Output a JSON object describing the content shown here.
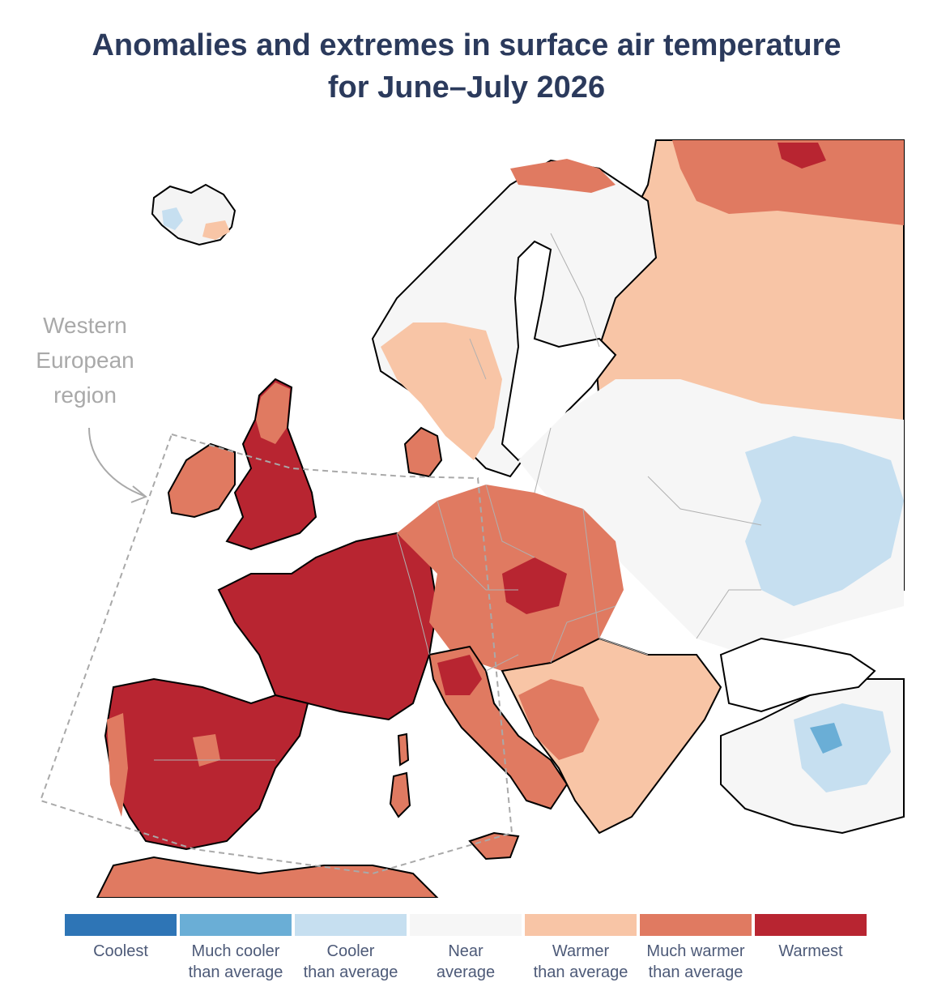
{
  "title": {
    "line1": "Anomalies and extremes in surface air temperature",
    "line2": "for June–July 2026"
  },
  "annotation": {
    "line1": "Western",
    "line2": "European",
    "line3": "region"
  },
  "legend": [
    {
      "color": "#2e75b6",
      "line1": "Coolest",
      "line2": ""
    },
    {
      "color": "#6aaed6",
      "line1": "Much cooler",
      "line2": "than average"
    },
    {
      "color": "#c6dff0",
      "line1": "Cooler",
      "line2": "than average"
    },
    {
      "color": "#f6f6f6",
      "line1": "Near",
      "line2": "average"
    },
    {
      "color": "#f8c5a6",
      "line1": "Warmer",
      "line2": "than average"
    },
    {
      "color": "#e07a61",
      "line1": "Much warmer",
      "line2": "than average"
    },
    {
      "color": "#b82531",
      "line1": "Warmest",
      "line2": ""
    }
  ],
  "colors": {
    "title": "#2b3a5c",
    "annotation": "#a9a9a9",
    "legend_text": "#4d5a78",
    "sea": "#ffffff",
    "coast": "#000000",
    "border": "#b0b0b0",
    "region_outline": "#a9a9a9"
  },
  "map_regions": [
    {
      "name": "Iceland",
      "anomaly": "near-average to cooler"
    },
    {
      "name": "Scandinavia",
      "anomaly": "near-average to warmer"
    },
    {
      "name": "Northern Russia",
      "anomaly": "much warmer"
    },
    {
      "name": "Eastern Europe",
      "anomaly": "near-average to cooler"
    },
    {
      "name": "British Isles",
      "anomaly": "warmest"
    },
    {
      "name": "France",
      "anomaly": "warmest"
    },
    {
      "name": "Iberian Peninsula",
      "anomaly": "warmest"
    },
    {
      "name": "Central Europe",
      "anomaly": "much warmer"
    },
    {
      "name": "Italy",
      "anomaly": "much warmer"
    },
    {
      "name": "Balkans",
      "anomaly": "warmer"
    },
    {
      "name": "Turkey",
      "anomaly": "near-average to cooler"
    },
    {
      "name": "North Africa",
      "anomaly": "much warmer"
    }
  ]
}
